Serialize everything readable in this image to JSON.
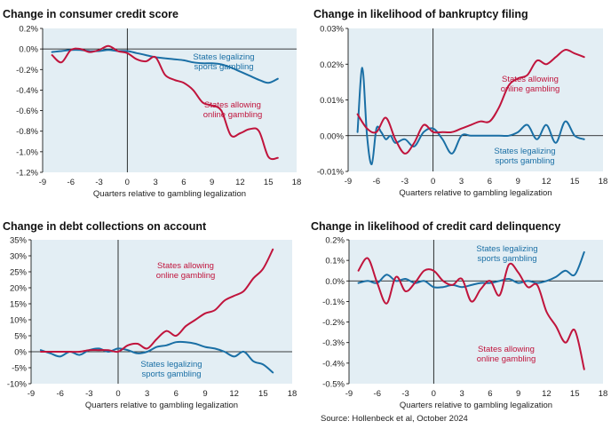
{
  "source": "Source: Hollenbeck et al, October 2024",
  "colors": {
    "panel_bg": "#e3eef4",
    "legal_sports": "#1a6fa5",
    "online": "#c0143c"
  },
  "chart_data": [
    {
      "type": "line",
      "title": "Change in consumer credit score",
      "xlabel": "Quarters relative to gambling legalization",
      "xlim": [
        -9,
        18
      ],
      "xticks": [
        -9,
        -6,
        -3,
        0,
        3,
        6,
        9,
        12,
        15,
        18
      ],
      "xtick_labels": [
        "-9",
        "-6",
        "-3",
        "0",
        "3",
        "6",
        "9",
        "12",
        "15",
        "18"
      ],
      "ylim": [
        -1.2,
        0.2
      ],
      "yticks": [
        -1.2,
        -1.0,
        -0.8,
        -0.6,
        -0.4,
        -0.2,
        0.0,
        0.2
      ],
      "ytick_labels": [
        "-1.2%",
        "-1.0%",
        "-0.8%",
        "-0.6%",
        "-0.4%",
        "-0.2%",
        "0.0%",
        "0.2%"
      ],
      "series": [
        {
          "name": "States legalizing sports gambling",
          "color": "#1a6fa5",
          "x": [
            -8,
            -7,
            -6,
            -5,
            -4,
            -3,
            -2,
            -1,
            0,
            1,
            2,
            3,
            4,
            5,
            6,
            7,
            8,
            9,
            10,
            11,
            12,
            13,
            14,
            15,
            16
          ],
          "y": [
            -0.03,
            -0.02,
            -0.01,
            -0.01,
            -0.02,
            -0.02,
            -0.01,
            -0.02,
            -0.02,
            -0.04,
            -0.06,
            -0.08,
            -0.09,
            -0.1,
            -0.11,
            -0.13,
            -0.14,
            -0.14,
            -0.15,
            -0.18,
            -0.22,
            -0.26,
            -0.3,
            -0.33,
            -0.29
          ]
        },
        {
          "name": "States allowing online gambling",
          "color": "#c0143c",
          "x": [
            -8,
            -7,
            -6,
            -5,
            -4,
            -3,
            -2,
            -1,
            0,
            1,
            2,
            3,
            4,
            5,
            6,
            7,
            8,
            9,
            10,
            11,
            12,
            13,
            14,
            15,
            16
          ],
          "y": [
            -0.06,
            -0.13,
            -0.01,
            0.0,
            -0.03,
            -0.01,
            0.03,
            -0.02,
            -0.04,
            -0.1,
            -0.12,
            -0.08,
            -0.25,
            -0.3,
            -0.33,
            -0.4,
            -0.52,
            -0.55,
            -0.6,
            -0.84,
            -0.82,
            -0.78,
            -0.8,
            -1.05,
            -1.06
          ]
        }
      ],
      "annotations": [
        {
          "lines": [
            "States legalizing",
            "sports gambling"
          ],
          "color": "#1a6fa5"
        },
        {
          "lines": [
            "States allowing",
            "online gambling"
          ],
          "color": "#c0143c"
        }
      ]
    },
    {
      "type": "line",
      "title": "Change in likelihood of bankruptcy filing",
      "xlabel": "Quarters relative to gambling legalization",
      "xlim": [
        -9,
        18
      ],
      "xticks": [
        -9,
        -6,
        -3,
        0,
        3,
        6,
        9,
        12,
        15,
        18
      ],
      "xtick_labels": [
        "-9",
        "-6",
        "-3",
        "0",
        "3",
        "6",
        "9",
        "12",
        "15",
        "18"
      ],
      "ylim": [
        -0.01,
        0.03
      ],
      "yticks": [
        -0.01,
        0.0,
        0.01,
        0.02,
        0.03
      ],
      "ytick_labels": [
        "-0.01%",
        "0.00%",
        "0.01%",
        "0.02%",
        "0.03%"
      ],
      "series": [
        {
          "name": "States legalizing sports gambling",
          "color": "#1a6fa5",
          "x": [
            -8,
            -7.5,
            -7,
            -6.5,
            -6,
            -5.5,
            -5,
            -4.5,
            -4,
            -3,
            -2,
            -1,
            0,
            1,
            2,
            3,
            4,
            5,
            6,
            7,
            8,
            9,
            10,
            11,
            12,
            13,
            14,
            15,
            16
          ],
          "y": [
            0.001,
            0.019,
            0.0,
            -0.008,
            0.002,
            0.001,
            -0.001,
            0.0,
            -0.002,
            -0.001,
            -0.003,
            0.001,
            0.002,
            -0.001,
            -0.005,
            0.0,
            0.0,
            0.0,
            0.0,
            0.0,
            0.0,
            0.001,
            0.003,
            -0.001,
            0.003,
            -0.002,
            0.004,
            0.0,
            -0.001
          ]
        },
        {
          "name": "States allowing online gambling",
          "color": "#c0143c",
          "x": [
            -8,
            -7,
            -6,
            -5,
            -4,
            -3,
            -2,
            -1,
            0,
            1,
            2,
            3,
            4,
            5,
            6,
            7,
            8,
            9,
            10,
            11,
            12,
            13,
            14,
            15,
            16
          ],
          "y": [
            0.006,
            0.002,
            0.001,
            0.005,
            -0.001,
            -0.005,
            -0.002,
            0.003,
            0.001,
            0.001,
            0.001,
            0.002,
            0.003,
            0.004,
            0.004,
            0.008,
            0.014,
            0.016,
            0.017,
            0.021,
            0.02,
            0.022,
            0.024,
            0.023,
            0.022
          ]
        }
      ],
      "annotations": [
        {
          "lines": [
            "States allowing",
            "online gambling"
          ],
          "color": "#c0143c"
        },
        {
          "lines": [
            "States legalizing",
            "sports gambling"
          ],
          "color": "#1a6fa5"
        }
      ]
    },
    {
      "type": "line",
      "title": "Change in debt collections on account",
      "xlabel": "Quarters relative to gambling legalization",
      "xlim": [
        -9,
        18
      ],
      "xticks": [
        -9,
        -6,
        -3,
        0,
        3,
        6,
        9,
        12,
        15,
        18
      ],
      "xtick_labels": [
        "-9",
        "-6",
        "-3",
        "0",
        "3",
        "6",
        "9",
        "12",
        "15",
        "18"
      ],
      "ylim": [
        -10,
        35
      ],
      "yticks": [
        -10,
        -5,
        0,
        5,
        10,
        15,
        20,
        25,
        30,
        35
      ],
      "ytick_labels": [
        "-10%",
        "-5%",
        "0%",
        "5%",
        "10%",
        "15%",
        "20%",
        "25%",
        "30%",
        "35%"
      ],
      "series": [
        {
          "name": "States legalizing sports gambling",
          "color": "#1a6fa5",
          "x": [
            -8,
            -7,
            -6,
            -5,
            -4,
            -3,
            -2,
            -1,
            0,
            1,
            2,
            3,
            4,
            5,
            6,
            7,
            8,
            9,
            10,
            11,
            12,
            13,
            14,
            15,
            16
          ],
          "y": [
            0.5,
            -0.5,
            -1.5,
            0.0,
            -1.0,
            0.5,
            1.0,
            0.0,
            1.0,
            0.5,
            -0.5,
            0.0,
            1.5,
            2.0,
            3.0,
            3.0,
            2.5,
            1.5,
            1.0,
            0.0,
            -1.5,
            0.0,
            -3.0,
            -4.0,
            -6.5
          ]
        },
        {
          "name": "States allowing online gambling",
          "color": "#c0143c",
          "x": [
            -8,
            -7,
            -6,
            -5,
            -4,
            -3,
            -2,
            -1,
            0,
            1,
            2,
            3,
            4,
            5,
            6,
            7,
            8,
            9,
            10,
            11,
            12,
            13,
            14,
            15,
            16
          ],
          "y": [
            0.0,
            0.0,
            0.0,
            0.0,
            0.0,
            0.5,
            0.5,
            0.5,
            0.0,
            2.0,
            2.5,
            1.0,
            4.0,
            6.5,
            5.0,
            8.0,
            10.0,
            12.0,
            13.0,
            16.0,
            17.5,
            19.0,
            23.0,
            26.0,
            32.0
          ]
        }
      ],
      "annotations": [
        {
          "lines": [
            "States allowing",
            "online gambling"
          ],
          "color": "#c0143c"
        },
        {
          "lines": [
            "States legalizing",
            "sports gambling"
          ],
          "color": "#1a6fa5"
        }
      ]
    },
    {
      "type": "line",
      "title": "Change in likelihood of credit card delinquency",
      "xlabel": "Quarters relative to gambling legalization",
      "xlim": [
        -9,
        18
      ],
      "xticks": [
        -9,
        -6,
        -3,
        0,
        3,
        6,
        9,
        12,
        15,
        18
      ],
      "xtick_labels": [
        "-9",
        "-6",
        "-3",
        "0",
        "3",
        "6",
        "9",
        "12",
        "15",
        "18"
      ],
      "ylim": [
        -0.5,
        0.2
      ],
      "yticks": [
        -0.5,
        -0.4,
        -0.3,
        -0.2,
        -0.1,
        0.0,
        0.1,
        0.2
      ],
      "ytick_labels": [
        "-0.5%",
        "-0.4%",
        "-0.3%",
        "-0.2%",
        "-0.1%",
        "0.0%",
        "0.1%",
        "0.2%"
      ],
      "series": [
        {
          "name": "States legalizing sports gambling",
          "color": "#1a6fa5",
          "x": [
            -8,
            -7,
            -6,
            -5,
            -4,
            -3,
            -2,
            -1,
            0,
            1,
            2,
            3,
            4,
            5,
            6,
            7,
            8,
            9,
            10,
            11,
            12,
            13,
            14,
            15,
            16
          ],
          "y": [
            -0.01,
            0.0,
            -0.01,
            0.03,
            0.0,
            0.01,
            -0.01,
            0.0,
            -0.03,
            -0.03,
            -0.02,
            -0.03,
            -0.02,
            -0.01,
            -0.01,
            0.0,
            0.01,
            -0.01,
            0.0,
            -0.01,
            0.0,
            0.02,
            0.05,
            0.03,
            0.14
          ]
        },
        {
          "name": "States allowing online gambling",
          "color": "#c0143c",
          "x": [
            -8,
            -7,
            -6,
            -5,
            -4,
            -3,
            -2,
            -1,
            0,
            1,
            2,
            3,
            4,
            5,
            6,
            7,
            8,
            9,
            10,
            11,
            12,
            13,
            14,
            15,
            16
          ],
          "y": [
            0.05,
            0.11,
            -0.01,
            -0.11,
            0.02,
            -0.05,
            -0.01,
            0.05,
            0.05,
            0.0,
            -0.02,
            0.01,
            -0.1,
            -0.04,
            0.0,
            -0.07,
            0.08,
            0.04,
            -0.03,
            -0.02,
            -0.15,
            -0.22,
            -0.3,
            -0.24,
            -0.43
          ]
        }
      ],
      "annotations": [
        {
          "lines": [
            "States legalizing",
            "sports gambling"
          ],
          "color": "#1a6fa5"
        },
        {
          "lines": [
            "States allowing",
            "online gambling"
          ],
          "color": "#c0143c"
        }
      ]
    }
  ]
}
